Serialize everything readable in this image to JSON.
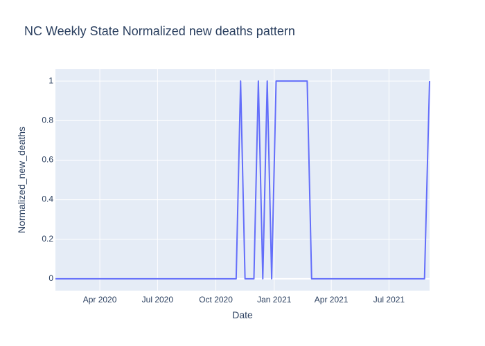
{
  "chart_data": {
    "type": "line",
    "title": "NC Weekly State Normalized new deaths pattern",
    "xlabel": "Date",
    "ylabel": "Normalized_new_deaths",
    "x_tick_labels": [
      "Apr 2020",
      "Jul 2020",
      "Oct 2020",
      "Jan 2021",
      "Apr 2021",
      "Jul 2021"
    ],
    "x_tick_dates": [
      "2020-04-01",
      "2020-07-01",
      "2020-10-01",
      "2021-01-01",
      "2021-04-01",
      "2021-07-01"
    ],
    "y_tick_labels": [
      "0",
      "0.2",
      "0.4",
      "0.6",
      "0.8",
      "1"
    ],
    "y_tick_values": [
      0,
      0.2,
      0.4,
      0.6,
      0.8,
      1
    ],
    "xlim": [
      "2020-01-22",
      "2021-09-03"
    ],
    "ylim": [
      -0.06,
      1.06
    ],
    "grid": true,
    "colors": {
      "line": "#636efa",
      "plot_bg": "#e5ecf6",
      "grid": "#ffffff",
      "text": "#2a3f5f"
    },
    "series": [
      {
        "x": [
          "2020-01-22",
          "2020-11-02",
          "2020-11-09",
          "2020-11-16",
          "2020-11-23",
          "2020-11-30",
          "2020-12-07",
          "2020-12-14",
          "2020-12-21",
          "2020-12-28",
          "2021-01-04",
          "2021-01-11",
          "2021-01-18",
          "2021-01-25",
          "2021-02-01",
          "2021-02-08",
          "2021-02-15",
          "2021-02-22",
          "2021-03-01",
          "2021-08-26",
          "2021-09-03"
        ],
        "y": [
          0,
          0,
          1,
          0,
          0,
          0,
          1,
          0,
          1,
          0,
          1,
          1,
          1,
          1,
          1,
          1,
          1,
          1,
          0,
          0,
          1
        ]
      }
    ]
  }
}
